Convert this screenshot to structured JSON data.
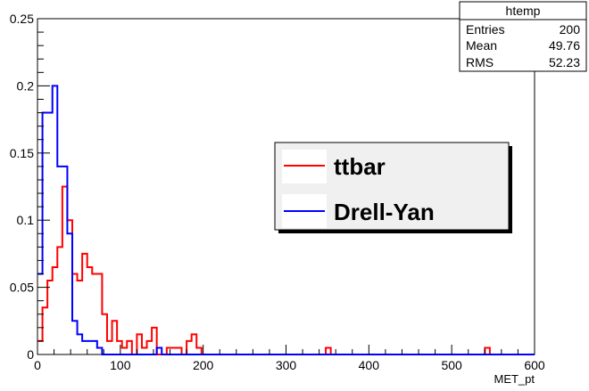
{
  "chart_data": {
    "type": "line",
    "xlabel": "MET_pt",
    "ylabel": "",
    "xlim": [
      0,
      600
    ],
    "ylim": [
      0,
      0.25
    ],
    "x_ticks": [
      0,
      100,
      200,
      300,
      400,
      500,
      600
    ],
    "y_ticks": [
      0,
      0.05,
      0.1,
      0.15,
      0.2,
      0.25
    ],
    "x_tick_labels": [
      "0",
      "100",
      "200",
      "300",
      "400",
      "500",
      "600"
    ],
    "y_tick_labels": [
      "0",
      "0.05",
      "0.1",
      "0.15",
      "0.2",
      "0.25"
    ],
    "bin_width": 6,
    "grid": false,
    "legend_placement": "center-right",
    "series": [
      {
        "name": "ttbar",
        "color": "#ff0000",
        "bin_edges_start": 0,
        "values": [
          0.01,
          0.035,
          0.055,
          0.065,
          0.08,
          0.125,
          0.1,
          0.06,
          0.055,
          0.075,
          0.065,
          0.06,
          0.06,
          0.03,
          0.01,
          0.025,
          0.01,
          0.005,
          0.01,
          0.0,
          0.015,
          0.005,
          0.01,
          0.02,
          0.0,
          0.0,
          0.005,
          0.005,
          0.005,
          0.0,
          0.01,
          0.015,
          0.005,
          0.0,
          0.0,
          0.0,
          0.0,
          0.0,
          0.0,
          0.0,
          0.0,
          0.0,
          0.0,
          0.0,
          0.0,
          0.0,
          0.0,
          0.0,
          0.0,
          0.0,
          0.0,
          0.0,
          0.0,
          0.0,
          0.0,
          0.0,
          0.0,
          0.0,
          0.005,
          0.0,
          0.0,
          0.0,
          0.0,
          0.0,
          0.0,
          0.0,
          0.0,
          0.0,
          0.0,
          0.0,
          0.0,
          0.0,
          0.0,
          0.0,
          0.0,
          0.0,
          0.0,
          0.0,
          0.0,
          0.0,
          0.0,
          0.0,
          0.0,
          0.0,
          0.0,
          0.0,
          0.0,
          0.0,
          0.0,
          0.0,
          0.005,
          0.0,
          0.0,
          0.0,
          0.0,
          0.0,
          0.0,
          0.0,
          0.0,
          0.0
        ]
      },
      {
        "name": "Drell-Yan",
        "color": "#0000ff",
        "bin_edges_start": 0,
        "values": [
          0.06,
          0.18,
          0.18,
          0.2,
          0.14,
          0.14,
          0.09,
          0.025,
          0.015,
          0.01,
          0.01,
          0.01,
          0.005,
          0.0,
          0.0,
          0.0,
          0.0,
          0.0,
          0.0,
          0.0,
          0.0,
          0.0,
          0.0,
          0.0,
          0.005,
          0.0,
          0.0,
          0.0,
          0.0,
          0.0,
          0.0,
          0.0,
          0.0,
          0.0,
          0.0,
          0.0,
          0.0,
          0.0,
          0.0,
          0.0,
          0.0,
          0.0,
          0.0,
          0.0,
          0.0,
          0.0,
          0.0,
          0.0,
          0.0,
          0.0,
          0.0,
          0.0,
          0.0,
          0.0,
          0.0,
          0.0,
          0.0,
          0.0,
          0.0,
          0.0,
          0.0,
          0.0,
          0.0,
          0.0,
          0.0,
          0.0,
          0.0,
          0.0,
          0.0,
          0.0,
          0.0,
          0.0,
          0.0,
          0.0,
          0.0,
          0.0,
          0.0,
          0.0,
          0.0,
          0.0,
          0.0,
          0.0,
          0.0,
          0.0,
          0.0,
          0.0,
          0.0,
          0.0,
          0.0,
          0.0,
          0.0,
          0.0,
          0.0,
          0.0,
          0.0,
          0.0,
          0.0,
          0.0,
          0.0,
          0.0
        ]
      }
    ],
    "stats_box": {
      "title": "htemp",
      "rows": [
        {
          "label": "Entries",
          "value": "200"
        },
        {
          "label": "Mean",
          "value": "49.76"
        },
        {
          "label": "RMS",
          "value": "52.23"
        }
      ]
    }
  }
}
